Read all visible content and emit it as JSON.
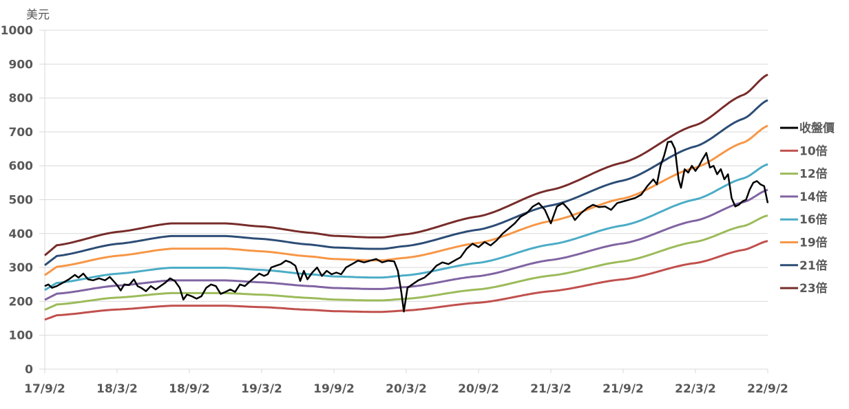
{
  "chart_data": {
    "type": "line",
    "title": "",
    "ylabel": "美元",
    "xlabel": "",
    "ylim": [
      0,
      1000
    ],
    "yticks": [
      "0",
      "100",
      "200",
      "300",
      "400",
      "500",
      "600",
      "700",
      "800",
      "900",
      "1000"
    ],
    "xlim_months": [
      0,
      60
    ],
    "xticks": [
      "17/9/2",
      "18/3/2",
      "18/9/2",
      "19/3/2",
      "19/9/2",
      "20/3/2",
      "20/9/2",
      "21/3/2",
      "21/9/2",
      "22/3/2",
      "22/9/2"
    ],
    "grid": "horizontal",
    "legend_position": "right",
    "x_unit_note": "months since 17/9/2",
    "price": {
      "name": "收盤價",
      "color": "#000000",
      "points": [
        [
          0,
          245
        ],
        [
          0.3,
          250
        ],
        [
          0.6,
          240
        ],
        [
          1,
          245
        ],
        [
          1.5,
          255
        ],
        [
          2,
          265
        ],
        [
          2.5,
          278
        ],
        [
          2.8,
          270
        ],
        [
          3.2,
          282
        ],
        [
          3.6,
          265
        ],
        [
          4,
          262
        ],
        [
          4.5,
          268
        ],
        [
          5,
          262
        ],
        [
          5.4,
          272
        ],
        [
          5.7,
          260
        ],
        [
          6,
          248
        ],
        [
          6.3,
          232
        ],
        [
          6.6,
          250
        ],
        [
          7,
          248
        ],
        [
          7.4,
          265
        ],
        [
          7.7,
          245
        ],
        [
          8,
          240
        ],
        [
          8.4,
          230
        ],
        [
          8.8,
          245
        ],
        [
          9.2,
          235
        ],
        [
          9.6,
          245
        ],
        [
          10,
          255
        ],
        [
          10.4,
          268
        ],
        [
          10.8,
          260
        ],
        [
          11.2,
          240
        ],
        [
          11.5,
          205
        ],
        [
          11.8,
          220
        ],
        [
          12.2,
          215
        ],
        [
          12.6,
          208
        ],
        [
          13,
          215
        ],
        [
          13.4,
          240
        ],
        [
          13.8,
          250
        ],
        [
          14.2,
          245
        ],
        [
          14.6,
          222
        ],
        [
          15,
          228
        ],
        [
          15.4,
          235
        ],
        [
          15.8,
          228
        ],
        [
          16.2,
          250
        ],
        [
          16.6,
          245
        ],
        [
          17,
          258
        ],
        [
          17.4,
          270
        ],
        [
          17.8,
          282
        ],
        [
          18.2,
          275
        ],
        [
          18.5,
          280
        ],
        [
          18.8,
          300
        ],
        [
          19.2,
          305
        ],
        [
          19.6,
          310
        ],
        [
          20,
          320
        ],
        [
          20.4,
          315
        ],
        [
          20.8,
          305
        ],
        [
          21.2,
          260
        ],
        [
          21.5,
          290
        ],
        [
          21.8,
          265
        ],
        [
          22.2,
          285
        ],
        [
          22.6,
          300
        ],
        [
          23,
          275
        ],
        [
          23.4,
          290
        ],
        [
          23.8,
          280
        ],
        [
          24.2,
          285
        ],
        [
          24.6,
          280
        ],
        [
          25,
          300
        ],
        [
          25.5,
          310
        ],
        [
          26,
          320
        ],
        [
          26.5,
          315
        ],
        [
          27,
          320
        ],
        [
          27.5,
          325
        ],
        [
          28,
          315
        ],
        [
          28.5,
          320
        ],
        [
          29,
          318
        ],
        [
          29.3,
          290
        ],
        [
          29.6,
          225
        ],
        [
          29.8,
          170
        ],
        [
          30.1,
          240
        ],
        [
          30.5,
          250
        ],
        [
          31,
          262
        ],
        [
          31.5,
          270
        ],
        [
          32,
          285
        ],
        [
          32.5,
          305
        ],
        [
          33,
          315
        ],
        [
          33.5,
          310
        ],
        [
          34,
          320
        ],
        [
          34.5,
          330
        ],
        [
          35,
          355
        ],
        [
          35.5,
          370
        ],
        [
          36,
          360
        ],
        [
          36.5,
          375
        ],
        [
          37,
          365
        ],
        [
          37.5,
          380
        ],
        [
          38,
          400
        ],
        [
          38.5,
          415
        ],
        [
          39,
          430
        ],
        [
          39.5,
          450
        ],
        [
          40,
          460
        ],
        [
          40.5,
          480
        ],
        [
          41,
          490
        ],
        [
          41.5,
          470
        ],
        [
          42,
          430
        ],
        [
          42.5,
          480
        ],
        [
          43,
          490
        ],
        [
          43.5,
          470
        ],
        [
          44,
          440
        ],
        [
          44.5,
          460
        ],
        [
          45,
          475
        ],
        [
          45.5,
          485
        ],
        [
          46,
          478
        ],
        [
          46.5,
          480
        ],
        [
          47,
          470
        ],
        [
          47.5,
          490
        ],
        [
          48,
          495
        ],
        [
          49,
          505
        ],
        [
          49.5,
          515
        ],
        [
          50,
          540
        ],
        [
          50.5,
          560
        ],
        [
          50.8,
          545
        ],
        [
          51.1,
          600
        ],
        [
          51.4,
          630
        ],
        [
          51.7,
          670
        ],
        [
          52,
          672
        ],
        [
          52.3,
          650
        ],
        [
          52.6,
          560
        ],
        [
          52.8,
          535
        ],
        [
          53.1,
          590
        ],
        [
          53.4,
          580
        ],
        [
          53.7,
          600
        ],
        [
          54,
          585
        ],
        [
          54.3,
          600
        ],
        [
          54.6,
          620
        ],
        [
          54.9,
          638
        ],
        [
          55.2,
          595
        ],
        [
          55.5,
          600
        ],
        [
          55.8,
          575
        ],
        [
          56.1,
          590
        ],
        [
          56.4,
          560
        ],
        [
          56.7,
          575
        ],
        [
          57,
          505
        ],
        [
          57.3,
          480
        ],
        [
          57.6,
          485
        ],
        [
          57.9,
          495
        ],
        [
          58.2,
          500
        ],
        [
          58.5,
          530
        ],
        [
          58.8,
          550
        ],
        [
          59.1,
          555
        ],
        [
          59.4,
          545
        ],
        [
          59.7,
          540
        ],
        [
          60,
          490
        ]
      ]
    },
    "eps_basis": [
      [
        0,
        14.6
      ],
      [
        1,
        15.9
      ],
      [
        6,
        17.6
      ],
      [
        10.5,
        18.7
      ],
      [
        15,
        18.7
      ],
      [
        18,
        18.3
      ],
      [
        22,
        17.5
      ],
      [
        24,
        17.1
      ],
      [
        27,
        16.9
      ],
      [
        28,
        16.9
      ],
      [
        30,
        17.3
      ],
      [
        36,
        19.6
      ],
      [
        42,
        23
      ],
      [
        48,
        26.5
      ],
      [
        54,
        31.3
      ],
      [
        58,
        35.2
      ],
      [
        60,
        37.8
      ]
    ],
    "bands": [
      {
        "name": "10倍",
        "multiple": 10,
        "color": "#c0504d"
      },
      {
        "name": "12倍",
        "multiple": 12,
        "color": "#9bbb59"
      },
      {
        "name": "14倍",
        "multiple": 14,
        "color": "#8064a2"
      },
      {
        "name": "16倍",
        "multiple": 16,
        "color": "#4bacc6"
      },
      {
        "name": "19倍",
        "multiple": 19,
        "color": "#f79646"
      },
      {
        "name": "21倍",
        "multiple": 21,
        "color": "#2c4d75"
      },
      {
        "name": "23倍",
        "multiple": 23,
        "color": "#772c2a"
      }
    ]
  }
}
